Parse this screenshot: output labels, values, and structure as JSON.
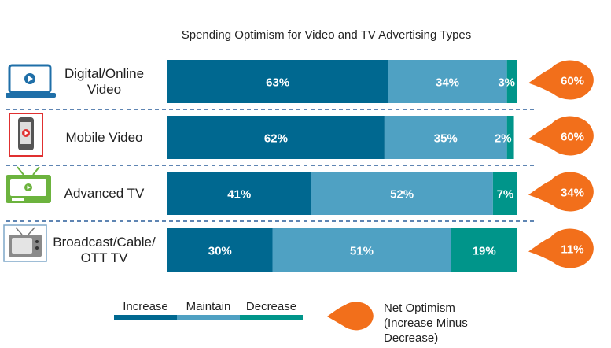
{
  "chart_data": {
    "type": "bar",
    "orientation": "horizontal",
    "stacked": true,
    "title": "Spending Optimism for Video and TV Advertising Types",
    "categories": [
      "Digital/Online Video",
      "Mobile Video",
      "Advanced TV",
      "Broadcast/Cable/ OTT TV"
    ],
    "series": [
      {
        "name": "Increase",
        "values": [
          63,
          62,
          41,
          30
        ],
        "labels": [
          "63%",
          "62%",
          "41%",
          "30%"
        ]
      },
      {
        "name": "Maintain",
        "values": [
          34,
          35,
          52,
          51
        ],
        "labels": [
          "34%",
          "35%",
          "52%",
          "51%"
        ]
      },
      {
        "name": "Decrease",
        "values": [
          3,
          2,
          7,
          19
        ],
        "labels": [
          "3%",
          "2%",
          "7%",
          "19%"
        ]
      }
    ],
    "net_optimism": {
      "name": "Net Optimism (Increase Minus Decrease)",
      "values": [
        60,
        60,
        34,
        11
      ],
      "labels": [
        "60%",
        "60%",
        "34%",
        "11%"
      ]
    },
    "xlim": [
      0,
      100
    ],
    "grid": false,
    "legend_position": "bottom"
  },
  "colors": {
    "increase": "#006890",
    "maintain": "#4fa1c3",
    "decrease": "#00958a",
    "net": "#f26f1b",
    "divider": "#2a5d9a",
    "mobile_frame": "#e03030",
    "tv_green": "#6cb33e"
  },
  "category_lines": [
    [
      "Digital/Online",
      "Video"
    ],
    [
      "Mobile Video"
    ],
    [
      "Advanced TV"
    ],
    [
      "Broadcast/Cable/",
      "OTT TV"
    ]
  ],
  "icons": [
    "laptop-video-icon",
    "mobile-video-icon",
    "advanced-tv-icon",
    "broadcast-tv-icon"
  ],
  "legend": {
    "increase": "Increase",
    "maintain": "Maintain",
    "decrease": "Decrease",
    "net_lines": [
      "Net Optimism",
      "(Increase Minus",
      "Decrease)"
    ]
  }
}
